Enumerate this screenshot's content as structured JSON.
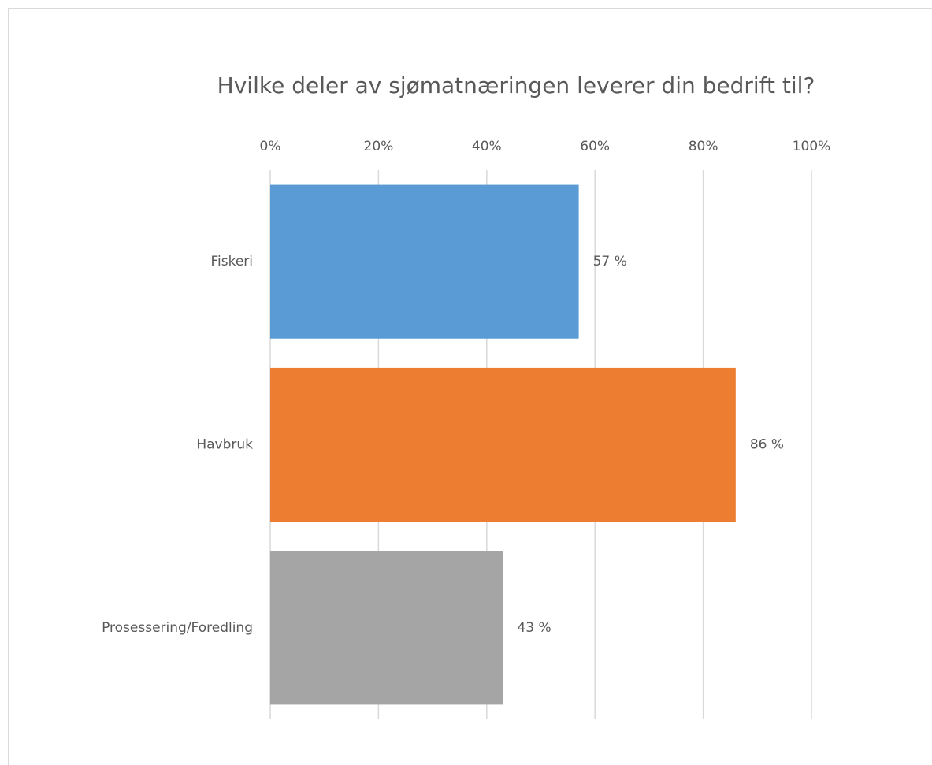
{
  "chart_data": {
    "type": "bar",
    "orientation": "horizontal",
    "title": "Hvilke deler av sjømatnæringen leverer din bedrift til?",
    "categories": [
      "Fiskeri",
      "Havbruk",
      "Prosessering/Foredling"
    ],
    "values": [
      57,
      86,
      43
    ],
    "value_labels": [
      "57 %",
      "86 %",
      "43 %"
    ],
    "colors": [
      "#5b9bd5",
      "#ed7d31",
      "#a5a5a5"
    ],
    "xlim": [
      0,
      100
    ],
    "xticks": [
      {
        "value": 0,
        "label": "0%"
      },
      {
        "value": 20,
        "label": "20%"
      },
      {
        "value": 40,
        "label": "40%"
      },
      {
        "value": 60,
        "label": "60%"
      },
      {
        "value": 80,
        "label": "80%"
      },
      {
        "value": 100,
        "label": "100%"
      }
    ],
    "grid": true
  }
}
